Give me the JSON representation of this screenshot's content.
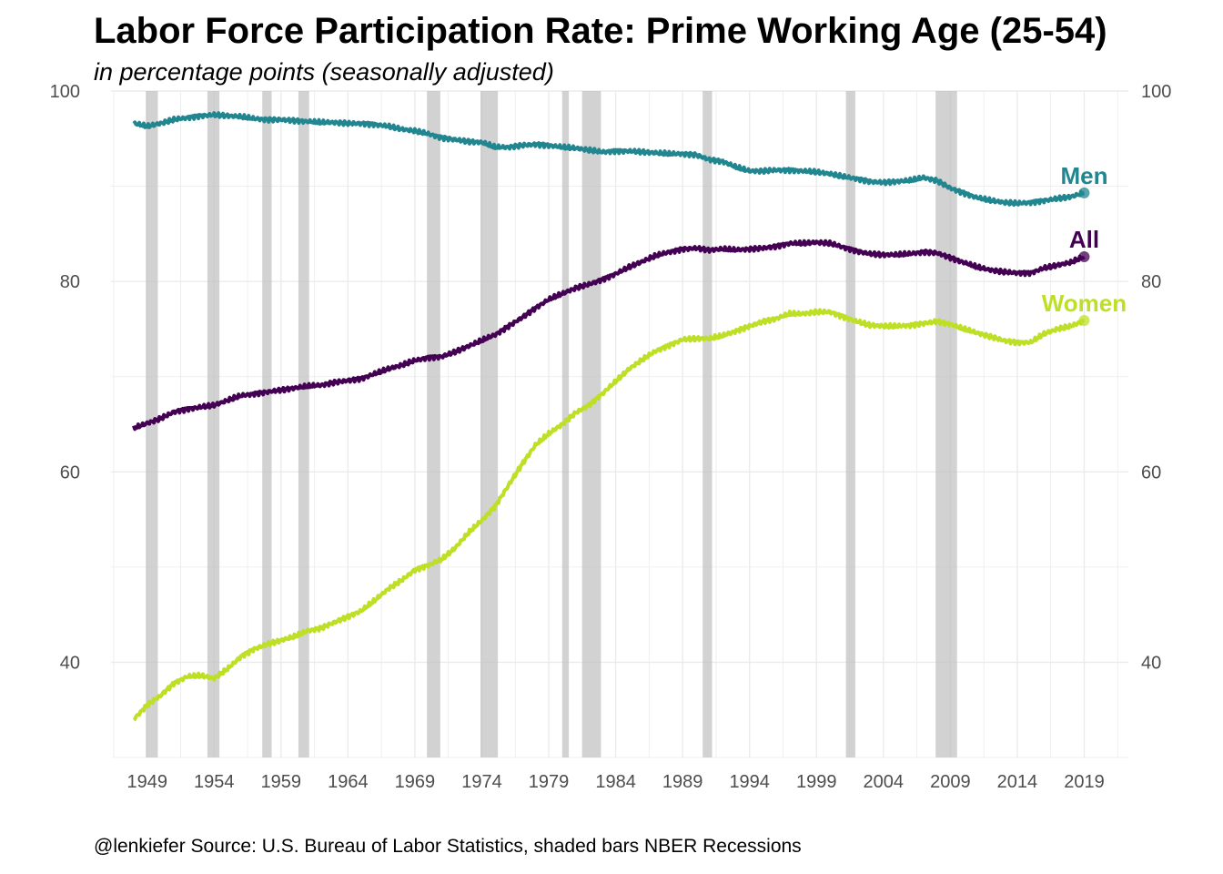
{
  "title": "Labor Force Participation Rate: Prime Working Age (25-54)",
  "subtitle": "in percentage points (seasonally adjusted)",
  "caption": "@lenkiefer Source: U.S. Bureau of Labor Statistics, shaded bars NBER Recessions",
  "chart_data": {
    "type": "line",
    "title": "Labor Force Participation Rate: Prime Working Age (25-54)",
    "subtitle": "in percentage points (seasonally adjusted)",
    "xlabel": "",
    "ylabel": "",
    "xlim": [
      1946.3,
      2022.3
    ],
    "ylim": [
      30,
      100
    ],
    "x_ticks": [
      1949,
      1954,
      1959,
      1964,
      1969,
      1974,
      1979,
      1984,
      1989,
      1994,
      1999,
      2004,
      2009,
      2014,
      2019
    ],
    "y_ticks": [
      40,
      60,
      80,
      100
    ],
    "y_axis": "both sides",
    "grid": true,
    "recessions": [
      [
        1948.9,
        1949.8
      ],
      [
        1953.5,
        1954.4
      ],
      [
        1957.6,
        1958.3
      ],
      [
        1960.3,
        1961.1
      ],
      [
        1969.9,
        1970.9
      ],
      [
        1973.9,
        1975.2
      ],
      [
        1980.0,
        1980.5
      ],
      [
        1981.5,
        1982.9
      ],
      [
        1990.5,
        1991.2
      ],
      [
        2001.2,
        2001.9
      ],
      [
        2007.9,
        2009.5
      ]
    ],
    "series": [
      {
        "name": "Men",
        "color": "#21868f",
        "x": [
          1948,
          1949,
          1950,
          1951,
          1952,
          1953,
          1954,
          1955,
          1956,
          1957,
          1958,
          1959,
          1960,
          1961,
          1962,
          1963,
          1964,
          1965,
          1966,
          1967,
          1968,
          1969,
          1970,
          1971,
          1972,
          1973,
          1974,
          1975,
          1976,
          1977,
          1978,
          1979,
          1980,
          1981,
          1982,
          1983,
          1984,
          1985,
          1986,
          1987,
          1988,
          1989,
          1990,
          1991,
          1992,
          1993,
          1994,
          1995,
          1996,
          1997,
          1998,
          1999,
          2000,
          2001,
          2002,
          2003,
          2004,
          2005,
          2006,
          2007,
          2008,
          2009,
          2010,
          2011,
          2012,
          2013,
          2014,
          2015,
          2016,
          2017,
          2018,
          2019
        ],
        "values": [
          96.6,
          96.3,
          96.6,
          97.0,
          97.2,
          97.4,
          97.5,
          97.4,
          97.3,
          97.1,
          97.0,
          97.0,
          96.9,
          96.8,
          96.7,
          96.7,
          96.6,
          96.6,
          96.5,
          96.3,
          96.0,
          95.8,
          95.5,
          95.1,
          94.9,
          94.7,
          94.6,
          94.1,
          94.1,
          94.3,
          94.4,
          94.3,
          94.1,
          94.0,
          93.8,
          93.6,
          93.7,
          93.7,
          93.6,
          93.5,
          93.4,
          93.4,
          93.3,
          92.8,
          92.6,
          92.0,
          91.6,
          91.6,
          91.7,
          91.7,
          91.6,
          91.5,
          91.3,
          91.0,
          90.8,
          90.5,
          90.4,
          90.5,
          90.6,
          90.9,
          90.6,
          89.8,
          89.3,
          88.8,
          88.5,
          88.3,
          88.2,
          88.3,
          88.5,
          88.7,
          88.9,
          89.3
        ]
      },
      {
        "name": "All",
        "color": "#440154",
        "x": [
          1948,
          1949,
          1950,
          1951,
          1952,
          1953,
          1954,
          1955,
          1956,
          1957,
          1958,
          1959,
          1960,
          1961,
          1962,
          1963,
          1964,
          1965,
          1966,
          1967,
          1968,
          1969,
          1970,
          1971,
          1972,
          1973,
          1974,
          1975,
          1976,
          1977,
          1978,
          1979,
          1980,
          1981,
          1982,
          1983,
          1984,
          1985,
          1986,
          1987,
          1988,
          1989,
          1990,
          1991,
          1992,
          1993,
          1994,
          1995,
          1996,
          1997,
          1998,
          1999,
          2000,
          2001,
          2002,
          2003,
          2004,
          2005,
          2006,
          2007,
          2008,
          2009,
          2010,
          2011,
          2012,
          2013,
          2014,
          2015,
          2016,
          2017,
          2018,
          2019
        ],
        "values": [
          64.6,
          65.1,
          65.6,
          66.3,
          66.6,
          66.8,
          67.0,
          67.5,
          68.0,
          68.2,
          68.4,
          68.6,
          68.8,
          69.0,
          69.1,
          69.4,
          69.6,
          69.8,
          70.3,
          70.8,
          71.2,
          71.7,
          72.0,
          72.1,
          72.6,
          73.2,
          73.8,
          74.4,
          75.3,
          76.2,
          77.2,
          78.1,
          78.7,
          79.3,
          79.7,
          80.2,
          80.8,
          81.5,
          82.1,
          82.7,
          83.1,
          83.4,
          83.5,
          83.3,
          83.4,
          83.3,
          83.4,
          83.5,
          83.7,
          84.0,
          84.0,
          84.1,
          84.0,
          83.6,
          83.2,
          82.9,
          82.8,
          82.8,
          82.9,
          83.1,
          83.0,
          82.5,
          82.0,
          81.5,
          81.2,
          81.0,
          80.9,
          80.9,
          81.4,
          81.7,
          82.0,
          82.6
        ]
      },
      {
        "name": "Women",
        "color": "#bddf26",
        "x": [
          1948,
          1949,
          1950,
          1951,
          1952,
          1953,
          1954,
          1955,
          1956,
          1957,
          1958,
          1959,
          1960,
          1961,
          1962,
          1963,
          1964,
          1965,
          1966,
          1967,
          1968,
          1969,
          1970,
          1971,
          1972,
          1973,
          1974,
          1975,
          1976,
          1977,
          1978,
          1979,
          1980,
          1981,
          1982,
          1983,
          1984,
          1985,
          1986,
          1987,
          1988,
          1989,
          1990,
          1991,
          1992,
          1993,
          1994,
          1995,
          1996,
          1997,
          1998,
          1999,
          2000,
          2001,
          2002,
          2003,
          2004,
          2005,
          2006,
          2007,
          2008,
          2009,
          2010,
          2011,
          2012,
          2013,
          2014,
          2015,
          2016,
          2017,
          2018,
          2019
        ],
        "values": [
          34.0,
          35.5,
          36.5,
          37.8,
          38.5,
          38.6,
          38.3,
          39.3,
          40.6,
          41.4,
          41.9,
          42.3,
          42.7,
          43.3,
          43.6,
          44.2,
          44.8,
          45.4,
          46.5,
          47.7,
          48.6,
          49.7,
          50.2,
          50.8,
          52.0,
          53.6,
          54.9,
          56.4,
          58.6,
          60.8,
          62.8,
          64.0,
          65.0,
          66.2,
          67.0,
          68.2,
          69.5,
          70.8,
          71.8,
          72.7,
          73.3,
          73.9,
          74.0,
          74.0,
          74.3,
          74.8,
          75.3,
          75.8,
          76.1,
          76.6,
          76.6,
          76.8,
          76.8,
          76.3,
          75.8,
          75.4,
          75.3,
          75.3,
          75.4,
          75.6,
          75.8,
          75.5,
          75.0,
          74.6,
          74.2,
          73.8,
          73.6,
          73.6,
          74.5,
          75.0,
          75.3,
          75.9
        ]
      }
    ]
  }
}
